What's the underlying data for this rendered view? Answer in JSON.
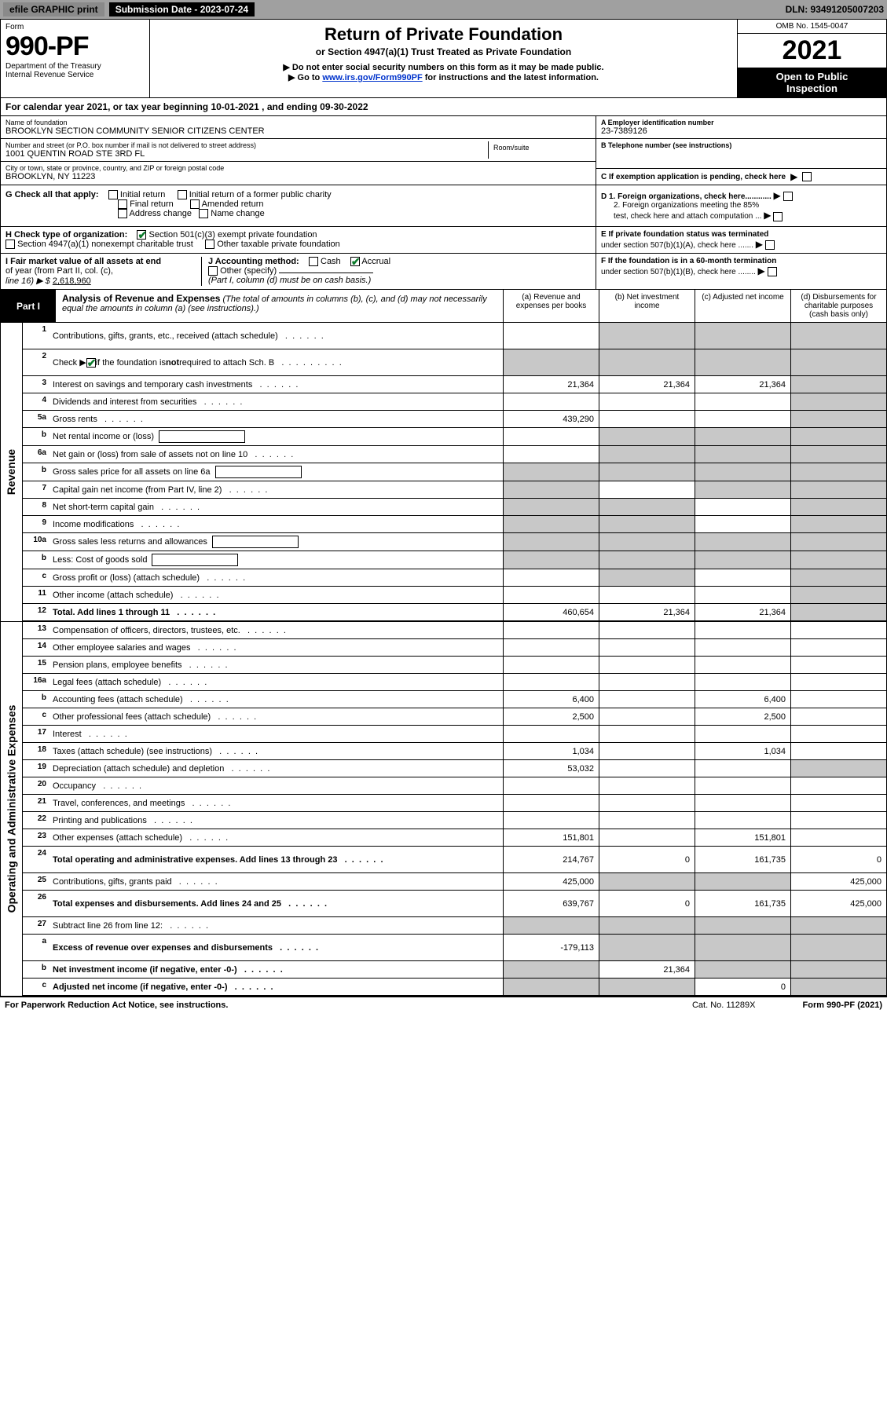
{
  "colors": {
    "topbar_bg": "#a0a0a0",
    "topbar_btn_bg": "#8a8a8a",
    "black": "#000000",
    "white": "#ffffff",
    "link": "#0033cc",
    "check_green": "#0a7a2a",
    "shade": "#c8c8c8",
    "shade_lt": "#e4e4e4"
  },
  "topbar": {
    "efile": "efile GRAPHIC print",
    "sub_date": "Submission Date - 2023-07-24",
    "dln": "DLN: 93491205007203"
  },
  "header": {
    "form_word": "Form",
    "form_no": "990-PF",
    "dept": "Department of the Treasury",
    "irs": "Internal Revenue Service",
    "title": "Return of Private Foundation",
    "sub1": "or Section 4947(a)(1) Trust Treated as Private Foundation",
    "sub2": "▶ Do not enter social security numbers on this form as it may be made public.",
    "sub3_pre": "▶ Go to ",
    "sub3_link": "www.irs.gov/Form990PF",
    "sub3_post": " for instructions and the latest information.",
    "omb": "OMB No. 1545-0047",
    "year": "2021",
    "open1": "Open to Public",
    "open2": "Inspection"
  },
  "cal_year": "For calendar year 2021, or tax year beginning 10-01-2021                              , and ending 09-30-2022",
  "ident": {
    "name_lbl": "Name of foundation",
    "name_val": "BROOKLYN SECTION COMMUNITY SENIOR CITIZENS CENTER",
    "addr_lbl": "Number and street (or P.O. box number if mail is not delivered to street address)",
    "addr_val": "1001 QUENTIN ROAD STE 3RD FL",
    "room_lbl": "Room/suite",
    "city_lbl": "City or town, state or province, country, and ZIP or foreign postal code",
    "city_val": "BROOKLYN, NY  11223",
    "a_lbl": "A Employer identification number",
    "a_val": "23-7389126",
    "b_lbl": "B Telephone number (see instructions)",
    "c_lbl": "C If exemption application is pending, check here"
  },
  "g": {
    "label": "G Check all that apply:",
    "o1": "Initial return",
    "o2": "Final return",
    "o3": "Address change",
    "o4": "Initial return of a former public charity",
    "o5": "Amended return",
    "o6": "Name change"
  },
  "d": {
    "d1": "D 1. Foreign organizations, check here............",
    "d2a": "2. Foreign organizations meeting the 85%",
    "d2b": "test, check here and attach computation ...",
    "e1": "E  If private foundation status was terminated",
    "e2": "under section 507(b)(1)(A), check here .......",
    "f1": "F  If the foundation is in a 60-month termination",
    "f2": "under section 507(b)(1)(B), check here ........"
  },
  "h": {
    "label": "H Check type of organization:",
    "o1": "Section 501(c)(3) exempt private foundation",
    "o2": "Section 4947(a)(1) nonexempt charitable trust",
    "o3": "Other taxable private foundation"
  },
  "i": {
    "l1": "I Fair market value of all assets at end",
    "l2": "of year (from Part II, col. (c),",
    "l3_pre": "line 16) ▶ $ ",
    "l3_val": "2,618,960"
  },
  "j": {
    "label": "J Accounting method:",
    "cash": "Cash",
    "accrual": "Accrual",
    "other": "Other (specify)",
    "note": "(Part I, column (d) must be on cash basis.)"
  },
  "part1": {
    "badge": "Part I",
    "title": "Analysis of Revenue and Expenses",
    "title_note": " (The total of amounts in columns (b), (c), and (d) may not necessarily equal the amounts in column (a) (see instructions).)",
    "col_a": "(a)   Revenue and expenses per books",
    "col_b": "(b)   Net investment income",
    "col_c": "(c)   Adjusted net income",
    "col_d": "(d)   Disbursements for charitable purposes (cash basis only)"
  },
  "side": {
    "rev": "Revenue",
    "exp": "Operating and Administrative Expenses"
  },
  "rows": [
    {
      "n": "1",
      "d": "Contributions, gifts, grants, etc., received (attach schedule)",
      "a": "",
      "b": "",
      "bs": 1,
      "c": "",
      "cs": 1,
      "dd": "",
      "ds": 1,
      "tall": 1
    },
    {
      "n": "2",
      "d": "Check ▶ ☑ if the foundation is not required to attach Sch. B",
      "a": "",
      "as": 1,
      "b": "",
      "bs": 1,
      "c": "",
      "cs": 1,
      "dd": "",
      "ds": 1,
      "tall": 1,
      "bold": 0,
      "chk": 1
    },
    {
      "n": "3",
      "d": "Interest on savings and temporary cash investments",
      "a": "21,364",
      "b": "21,364",
      "c": "21,364",
      "dd": "",
      "ds": 1
    },
    {
      "n": "4",
      "d": "Dividends and interest from securities",
      "a": "",
      "b": "",
      "c": "",
      "dd": "",
      "ds": 1
    },
    {
      "n": "5a",
      "d": "Gross rents",
      "a": "439,290",
      "b": "",
      "c": "",
      "dd": "",
      "ds": 1
    },
    {
      "n": "b",
      "d": "Net rental income or (loss)",
      "a": "",
      "as": 0,
      "b": "",
      "bs": 1,
      "c": "",
      "cs": 1,
      "dd": "",
      "ds": 1,
      "box": 1
    },
    {
      "n": "6a",
      "d": "Net gain or (loss) from sale of assets not on line 10",
      "a": "",
      "b": "",
      "bs": 1,
      "c": "",
      "cs": 1,
      "dd": "",
      "ds": 1
    },
    {
      "n": "b",
      "d": "Gross sales price for all assets on line 6a",
      "a": "",
      "as": 1,
      "b": "",
      "bs": 1,
      "c": "",
      "cs": 1,
      "dd": "",
      "ds": 1,
      "box": 1
    },
    {
      "n": "7",
      "d": "Capital gain net income (from Part IV, line 2)",
      "a": "",
      "as": 1,
      "b": "",
      "c": "",
      "cs": 1,
      "dd": "",
      "ds": 1
    },
    {
      "n": "8",
      "d": "Net short-term capital gain",
      "a": "",
      "as": 1,
      "b": "",
      "bs": 1,
      "c": "",
      "dd": "",
      "ds": 1
    },
    {
      "n": "9",
      "d": "Income modifications",
      "a": "",
      "as": 1,
      "b": "",
      "bs": 1,
      "c": "",
      "dd": "",
      "ds": 1
    },
    {
      "n": "10a",
      "d": "Gross sales less returns and allowances",
      "a": "",
      "as": 1,
      "b": "",
      "bs": 1,
      "c": "",
      "cs": 1,
      "dd": "",
      "ds": 1,
      "box": 1
    },
    {
      "n": "b",
      "d": "Less: Cost of goods sold",
      "a": "",
      "as": 1,
      "b": "",
      "bs": 1,
      "c": "",
      "cs": 1,
      "dd": "",
      "ds": 1,
      "box": 1
    },
    {
      "n": "c",
      "d": "Gross profit or (loss) (attach schedule)",
      "a": "",
      "b": "",
      "bs": 1,
      "c": "",
      "dd": "",
      "ds": 1
    },
    {
      "n": "11",
      "d": "Other income (attach schedule)",
      "a": "",
      "b": "",
      "c": "",
      "dd": "",
      "ds": 1
    },
    {
      "n": "12",
      "d": "Total. Add lines 1 through 11",
      "a": "460,654",
      "b": "21,364",
      "c": "21,364",
      "dd": "",
      "ds": 1,
      "bold": 1
    }
  ],
  "exp_rows": [
    {
      "n": "13",
      "d": "Compensation of officers, directors, trustees, etc.",
      "a": "",
      "b": "",
      "c": "",
      "dd": ""
    },
    {
      "n": "14",
      "d": "Other employee salaries and wages",
      "a": "",
      "b": "",
      "c": "",
      "dd": ""
    },
    {
      "n": "15",
      "d": "Pension plans, employee benefits",
      "a": "",
      "b": "",
      "c": "",
      "dd": ""
    },
    {
      "n": "16a",
      "d": "Legal fees (attach schedule)",
      "a": "",
      "b": "",
      "c": "",
      "dd": ""
    },
    {
      "n": "b",
      "d": "Accounting fees (attach schedule)",
      "a": "6,400",
      "b": "",
      "c": "6,400",
      "dd": ""
    },
    {
      "n": "c",
      "d": "Other professional fees (attach schedule)",
      "a": "2,500",
      "b": "",
      "c": "2,500",
      "dd": ""
    },
    {
      "n": "17",
      "d": "Interest",
      "a": "",
      "b": "",
      "c": "",
      "dd": ""
    },
    {
      "n": "18",
      "d": "Taxes (attach schedule) (see instructions)",
      "a": "1,034",
      "b": "",
      "c": "1,034",
      "dd": ""
    },
    {
      "n": "19",
      "d": "Depreciation (attach schedule) and depletion",
      "a": "53,032",
      "b": "",
      "c": "",
      "dd": "",
      "ds": 1
    },
    {
      "n": "20",
      "d": "Occupancy",
      "a": "",
      "b": "",
      "c": "",
      "dd": ""
    },
    {
      "n": "21",
      "d": "Travel, conferences, and meetings",
      "a": "",
      "b": "",
      "c": "",
      "dd": ""
    },
    {
      "n": "22",
      "d": "Printing and publications",
      "a": "",
      "b": "",
      "c": "",
      "dd": ""
    },
    {
      "n": "23",
      "d": "Other expenses (attach schedule)",
      "a": "151,801",
      "b": "",
      "c": "151,801",
      "dd": ""
    },
    {
      "n": "24",
      "d": "Total operating and administrative expenses. Add lines 13 through 23",
      "a": "214,767",
      "b": "0",
      "c": "161,735",
      "dd": "0",
      "bold": 1,
      "tall": 1
    },
    {
      "n": "25",
      "d": "Contributions, gifts, grants paid",
      "a": "425,000",
      "b": "",
      "bs": 1,
      "c": "",
      "cs": 1,
      "dd": "425,000"
    },
    {
      "n": "26",
      "d": "Total expenses and disbursements. Add lines 24 and 25",
      "a": "639,767",
      "b": "0",
      "c": "161,735",
      "dd": "425,000",
      "bold": 1,
      "tall": 1
    },
    {
      "n": "27",
      "d": "Subtract line 26 from line 12:",
      "a": "",
      "as": 1,
      "b": "",
      "bs": 1,
      "c": "",
      "cs": 1,
      "dd": "",
      "ds": 1
    },
    {
      "n": "a",
      "d": "Excess of revenue over expenses and disbursements",
      "a": "-179,113",
      "b": "",
      "bs": 1,
      "c": "",
      "cs": 1,
      "dd": "",
      "ds": 1,
      "bold": 1,
      "tall": 1
    },
    {
      "n": "b",
      "d": "Net investment income (if negative, enter -0-)",
      "a": "",
      "as": 1,
      "b": "21,364",
      "c": "",
      "cs": 1,
      "dd": "",
      "ds": 1,
      "bold": 1
    },
    {
      "n": "c",
      "d": "Adjusted net income (if negative, enter -0-)",
      "a": "",
      "as": 1,
      "b": "",
      "bs": 1,
      "c": "0",
      "dd": "",
      "ds": 1,
      "bold": 1
    }
  ],
  "footer": {
    "left": "For Paperwork Reduction Act Notice, see instructions.",
    "mid": "Cat. No. 11289X",
    "right": "Form 990-PF (2021)"
  }
}
